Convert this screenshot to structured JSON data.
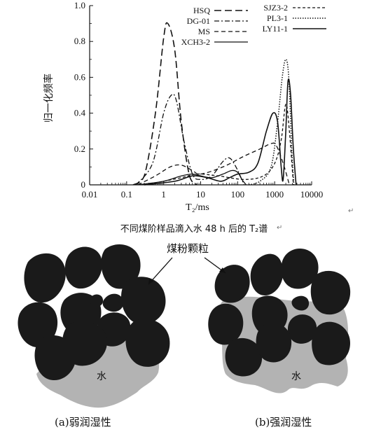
{
  "chart_data": {
    "type": "line",
    "xscale": "log",
    "xlim": [
      0.01,
      10000
    ],
    "ylim": [
      0,
      1.0
    ],
    "xlabel": "T₂/ms",
    "ylabel": "归一化频率",
    "x_tick_labels": [
      "0.01",
      "0.1",
      "1",
      "10",
      "100",
      "1000",
      "10000"
    ],
    "y_tick_labels": [
      "0",
      "0.2",
      "0.4",
      "0.6",
      "0.8",
      "1.0"
    ],
    "grid": false,
    "legend_position": "top",
    "series": [
      {
        "name": "HSQ",
        "x": [
          0.15,
          0.3,
          0.6,
          1.0,
          1.3,
          2.0,
          3.0,
          5.0,
          8.0
        ],
        "y": [
          0,
          0.05,
          0.4,
          0.82,
          0.9,
          0.75,
          0.35,
          0.05,
          0
        ]
      },
      {
        "name": "DG-01",
        "x": [
          0.18,
          0.5,
          1.0,
          1.6,
          2.2,
          3.5,
          6.0,
          10,
          20,
          40,
          60,
          90,
          150
        ],
        "y": [
          0,
          0.12,
          0.4,
          0.5,
          0.47,
          0.25,
          0.06,
          0.03,
          0.05,
          0.13,
          0.15,
          0.1,
          0
        ]
      },
      {
        "name": "MS",
        "x": [
          0.2,
          0.6,
          1.5,
          3.0,
          6.0,
          10,
          40,
          150,
          400,
          800,
          1100,
          1700,
          2500
        ],
        "y": [
          0,
          0.05,
          0.1,
          0.11,
          0.08,
          0.06,
          0.1,
          0.16,
          0.2,
          0.23,
          0.22,
          0.12,
          0
        ]
      },
      {
        "name": "XCH3-2",
        "x": [
          0.2,
          1.0,
          3.0,
          6.0,
          10,
          20,
          40,
          70,
          100,
          130,
          170
        ],
        "y": [
          0,
          0.02,
          0.05,
          0.06,
          0.05,
          0.04,
          0.06,
          0.08,
          0.07,
          0.03,
          0
        ]
      },
      {
        "name": "SJZ3-2",
        "x": [
          0.3,
          1.0,
          3.0,
          8.0,
          30,
          150,
          500,
          1000,
          1500,
          2000,
          2500,
          3200
        ],
        "y": [
          0,
          0.02,
          0.04,
          0.06,
          0.05,
          0.03,
          0.05,
          0.12,
          0.25,
          0.45,
          0.3,
          0
        ]
      },
      {
        "name": "PL3-1",
        "x": [
          200,
          400,
          800,
          1200,
          1600,
          2000,
          2400,
          2900,
          3300
        ],
        "y": [
          0,
          0.02,
          0.1,
          0.35,
          0.6,
          0.7,
          0.6,
          0.2,
          0
        ]
      },
      {
        "name": "LY11-1",
        "x": [
          0.3,
          2.0,
          6.0,
          15,
          35,
          60,
          100,
          200,
          350,
          600,
          900,
          1200,
          1500,
          1700,
          2000,
          2300,
          2700,
          3200,
          3800
        ],
        "y": [
          0,
          0.02,
          0.05,
          0.04,
          0.02,
          0.04,
          0.06,
          0.07,
          0.12,
          0.3,
          0.4,
          0.35,
          0.1,
          0.03,
          0.3,
          0.58,
          0.5,
          0.2,
          0
        ]
      }
    ]
  },
  "figure": {
    "caption": "不同煤阶样品滴入水 48 h 后的 T₂谱",
    "return_mark": "↵"
  },
  "diagram": {
    "particle_label": "煤粉颗粒",
    "water_label_a": "水",
    "water_label_b": "水",
    "caption_a": "(a)弱润湿性",
    "caption_b": "(b)强润湿性",
    "particle_color": "#1a1a1a",
    "water_color": "#b3b3b3"
  }
}
